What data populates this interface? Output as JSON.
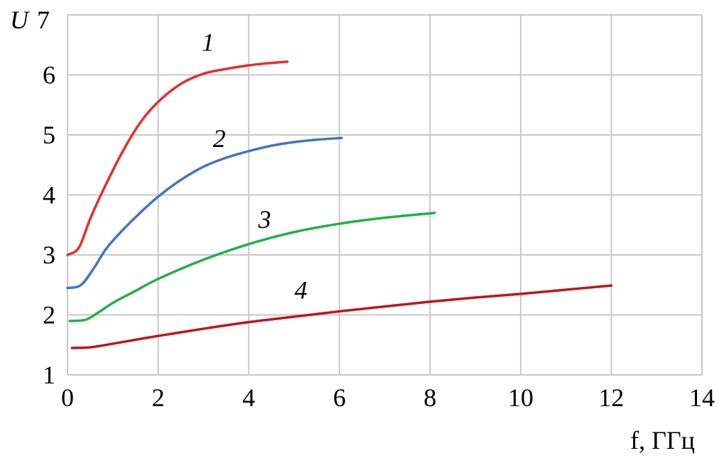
{
  "chart_data": {
    "type": "line",
    "title": "",
    "xlabel": "f, ГГц",
    "ylabel": "U",
    "xlim": [
      0,
      14
    ],
    "ylim": [
      1,
      7
    ],
    "xticks": [
      "0",
      "2",
      "4",
      "6",
      "8",
      "10",
      "12",
      "14"
    ],
    "yticks": [
      "1",
      "2",
      "3",
      "4",
      "5",
      "6",
      "7"
    ],
    "grid": true,
    "series": [
      {
        "name": "1",
        "color": "#ee2a2a",
        "label_at": [
          3.1,
          6.4
        ],
        "points": [
          [
            0,
            3.0
          ],
          [
            0.25,
            3.12
          ],
          [
            0.5,
            3.6
          ],
          [
            0.8,
            4.1
          ],
          [
            1.2,
            4.7
          ],
          [
            1.6,
            5.2
          ],
          [
            2,
            5.55
          ],
          [
            2.5,
            5.85
          ],
          [
            3,
            6.02
          ],
          [
            3.5,
            6.1
          ],
          [
            4,
            6.16
          ],
          [
            4.5,
            6.2
          ],
          [
            4.85,
            6.22
          ]
        ]
      },
      {
        "name": "2",
        "color": "#4472c4",
        "label_at": [
          3.35,
          4.8
        ],
        "points": [
          [
            0,
            2.45
          ],
          [
            0.3,
            2.5
          ],
          [
            0.6,
            2.8
          ],
          [
            0.85,
            3.1
          ],
          [
            1.2,
            3.4
          ],
          [
            1.6,
            3.7
          ],
          [
            2,
            3.97
          ],
          [
            2.5,
            4.25
          ],
          [
            3,
            4.47
          ],
          [
            3.5,
            4.62
          ],
          [
            4,
            4.73
          ],
          [
            4.5,
            4.82
          ],
          [
            5,
            4.88
          ],
          [
            5.5,
            4.92
          ],
          [
            6.05,
            4.95
          ]
        ]
      },
      {
        "name": "3",
        "color": "#22b04b",
        "label_at": [
          4.35,
          3.45
        ],
        "points": [
          [
            0.05,
            1.9
          ],
          [
            0.4,
            1.92
          ],
          [
            0.7,
            2.05
          ],
          [
            1,
            2.2
          ],
          [
            1.5,
            2.4
          ],
          [
            2,
            2.6
          ],
          [
            3,
            2.92
          ],
          [
            4,
            3.18
          ],
          [
            5,
            3.38
          ],
          [
            6,
            3.52
          ],
          [
            7,
            3.62
          ],
          [
            8.1,
            3.7
          ]
        ]
      },
      {
        "name": "4",
        "color": "#c0141e",
        "label_at": [
          5.15,
          2.27
        ],
        "points": [
          [
            0.1,
            1.45
          ],
          [
            0.5,
            1.46
          ],
          [
            1,
            1.52
          ],
          [
            2,
            1.65
          ],
          [
            3,
            1.77
          ],
          [
            4,
            1.88
          ],
          [
            5,
            1.97
          ],
          [
            6,
            2.06
          ],
          [
            7,
            2.14
          ],
          [
            8,
            2.22
          ],
          [
            9,
            2.29
          ],
          [
            10,
            2.35
          ],
          [
            11,
            2.42
          ],
          [
            12,
            2.49
          ]
        ]
      }
    ]
  }
}
